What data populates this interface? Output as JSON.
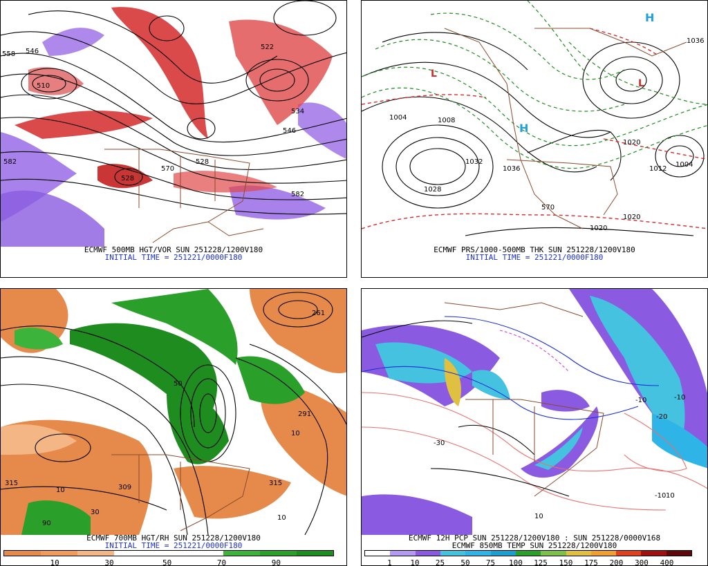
{
  "panels": {
    "p500": {
      "line1": "ECMWF 500MB HGT/VOR SUN 251228/1200V180",
      "line2": "INITIAL TIME = 251221/0000F180",
      "contour_labels": [
        "546",
        "558",
        "510",
        "534",
        "546",
        "570",
        "582",
        "582",
        "528",
        "528",
        "522"
      ]
    },
    "pmsl": {
      "line1": "ECMWF PRS/1000-500MB THK SUN 251228/1200V180",
      "line2": "INITIAL TIME = 251221/0000F180",
      "contour_labels": [
        "1004",
        "1008",
        "1028",
        "1036",
        "1012",
        "1004",
        "1020",
        "1020",
        "1036",
        "570",
        "1020",
        "1032"
      ]
    },
    "p700": {
      "line1": "ECMWF 700MB HGT/RH SUN 251228/1200V180",
      "line2": "INITIAL TIME = 251221/0000F180",
      "contour_labels": [
        "315",
        "291",
        "309",
        "315",
        "10",
        "10",
        "50",
        "10",
        "30",
        "90",
        "261"
      ],
      "legend_ticks": [
        "10",
        "30",
        "50",
        "70",
        "90"
      ]
    },
    "pcp": {
      "line1": "ECMWF 12H PCP SUN 251228/1200V180 : SUN 251228/0000V168",
      "line2": "ECMWF 850MB TEMP SUN 251228/1200V180",
      "contour_labels": [
        "-10",
        "-10",
        "-20",
        "-10",
        "-30",
        "10",
        "10"
      ],
      "legend_ticks": [
        "1",
        "10",
        "25",
        "50",
        "75",
        "100",
        "125",
        "150",
        "175",
        "200",
        "300",
        "400"
      ]
    }
  },
  "colors": {
    "caption_blue": "#1a2fd6",
    "vorticity_red": "#d42a2a",
    "vorticity_purple": "#8a5be0",
    "rh_green": "#1e8c1e",
    "rh_orange": "#e58a4a",
    "border_brown": "#8b4a2b"
  }
}
